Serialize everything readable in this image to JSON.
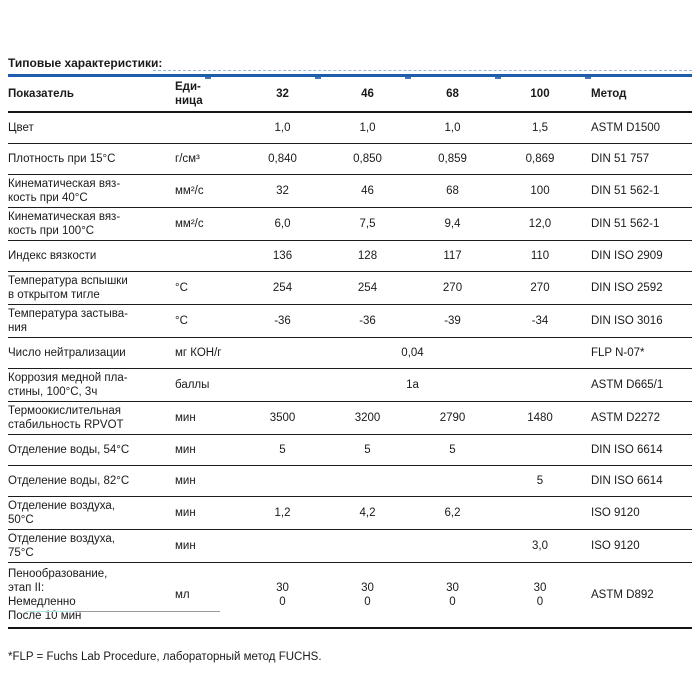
{
  "page": {
    "heading": "Типовые характеристики:",
    "footnote": "*FLP = Fuchs Lab Procedure, лабораторный метод FUCHS."
  },
  "colors": {
    "blue": "#1e5dab",
    "light_blue": "#93b5de",
    "text": "#1a1a1a",
    "teal_underline": "#aee3df",
    "gray_underline": "#9a9a9a"
  },
  "chart_data": {
    "type": "table",
    "title": "Типовые характеристики:",
    "columns": [
      "Показатель",
      "Еди-\nница",
      "32",
      "46",
      "68",
      "100",
      "Метод"
    ]
  },
  "table": {
    "columns": [
      "Показатель",
      "Еди-\nница",
      "32",
      "46",
      "68",
      "100",
      "Метод"
    ],
    "rows": [
      {
        "label": "Цвет",
        "unit": "",
        "values": [
          "1,0",
          "1,0",
          "1,0",
          "1,5"
        ],
        "method": "ASTM D1500"
      },
      {
        "label": "Плотность при 15°C",
        "unit": "г/см³",
        "values": [
          "0,840",
          "0,850",
          "0,859",
          "0,869"
        ],
        "method": "DIN 51 757"
      },
      {
        "label": "Кинематическая вяз-\nкость при 40°C",
        "unit": "мм²/с",
        "values": [
          "32",
          "46",
          "68",
          "100"
        ],
        "method": "DIN 51 562-1"
      },
      {
        "label": "Кинематическая вяз-\nкость при 100°C",
        "unit": "мм²/с",
        "values": [
          "6,0",
          "7,5",
          "9,4",
          "12,0"
        ],
        "method": "DIN 51 562-1"
      },
      {
        "label": "Индекс вязкости",
        "unit": "",
        "values": [
          "136",
          "128",
          "117",
          "110"
        ],
        "method": "DIN ISO 2909"
      },
      {
        "label": "Температура вспышки\nв открытом тигле",
        "unit": "°C",
        "values": [
          "254",
          "254",
          "270",
          "270"
        ],
        "method": "DIN ISO 2592"
      },
      {
        "label": "Температура застыва-\nния",
        "unit": "°C",
        "values": [
          "-36",
          "-36",
          "-39",
          "-34"
        ],
        "method": "DIN ISO 3016"
      },
      {
        "label": "Число нейтрализации",
        "unit": "мг КОН/г",
        "merged": "0,04",
        "method": "FLP N-07*"
      },
      {
        "label": "Коррозия медной пла-\nстины, 100°C, 3ч",
        "unit": "баллы",
        "merged": "1a",
        "method": "ASTM D665/1"
      },
      {
        "label": "Термоокислительная\nстабильность RPVOT",
        "unit": "мин",
        "values": [
          "3500",
          "3200",
          "2790",
          "1480"
        ],
        "method": "ASTM D2272"
      },
      {
        "label": "Отделение воды, 54°C",
        "unit": "мин",
        "values": [
          "5",
          "5",
          "5",
          ""
        ],
        "method": "DIN ISO 6614"
      },
      {
        "label": "Отделение воды, 82°C",
        "unit": "мин",
        "values": [
          "",
          "",
          "",
          "5"
        ],
        "method": "DIN ISO 6614"
      },
      {
        "label": "Отделение воздуха,\n50°C",
        "unit": "мин",
        "values": [
          "1,2",
          "4,2",
          "6,2",
          ""
        ],
        "method": "ISO 9120"
      },
      {
        "label": "Отделение воздуха,\n75°C",
        "unit": "мин",
        "values": [
          "",
          "",
          "",
          "3,0"
        ],
        "method": "ISO 9120"
      },
      {
        "label": "Пенообразование,\nэтап II:\nНемедленно\nПосле 10 мин",
        "unit": "мл",
        "values": [
          "30\n0",
          "30\n0",
          "30\n0",
          "30\n0"
        ],
        "method": "ASTM D892",
        "foam": true
      }
    ]
  }
}
